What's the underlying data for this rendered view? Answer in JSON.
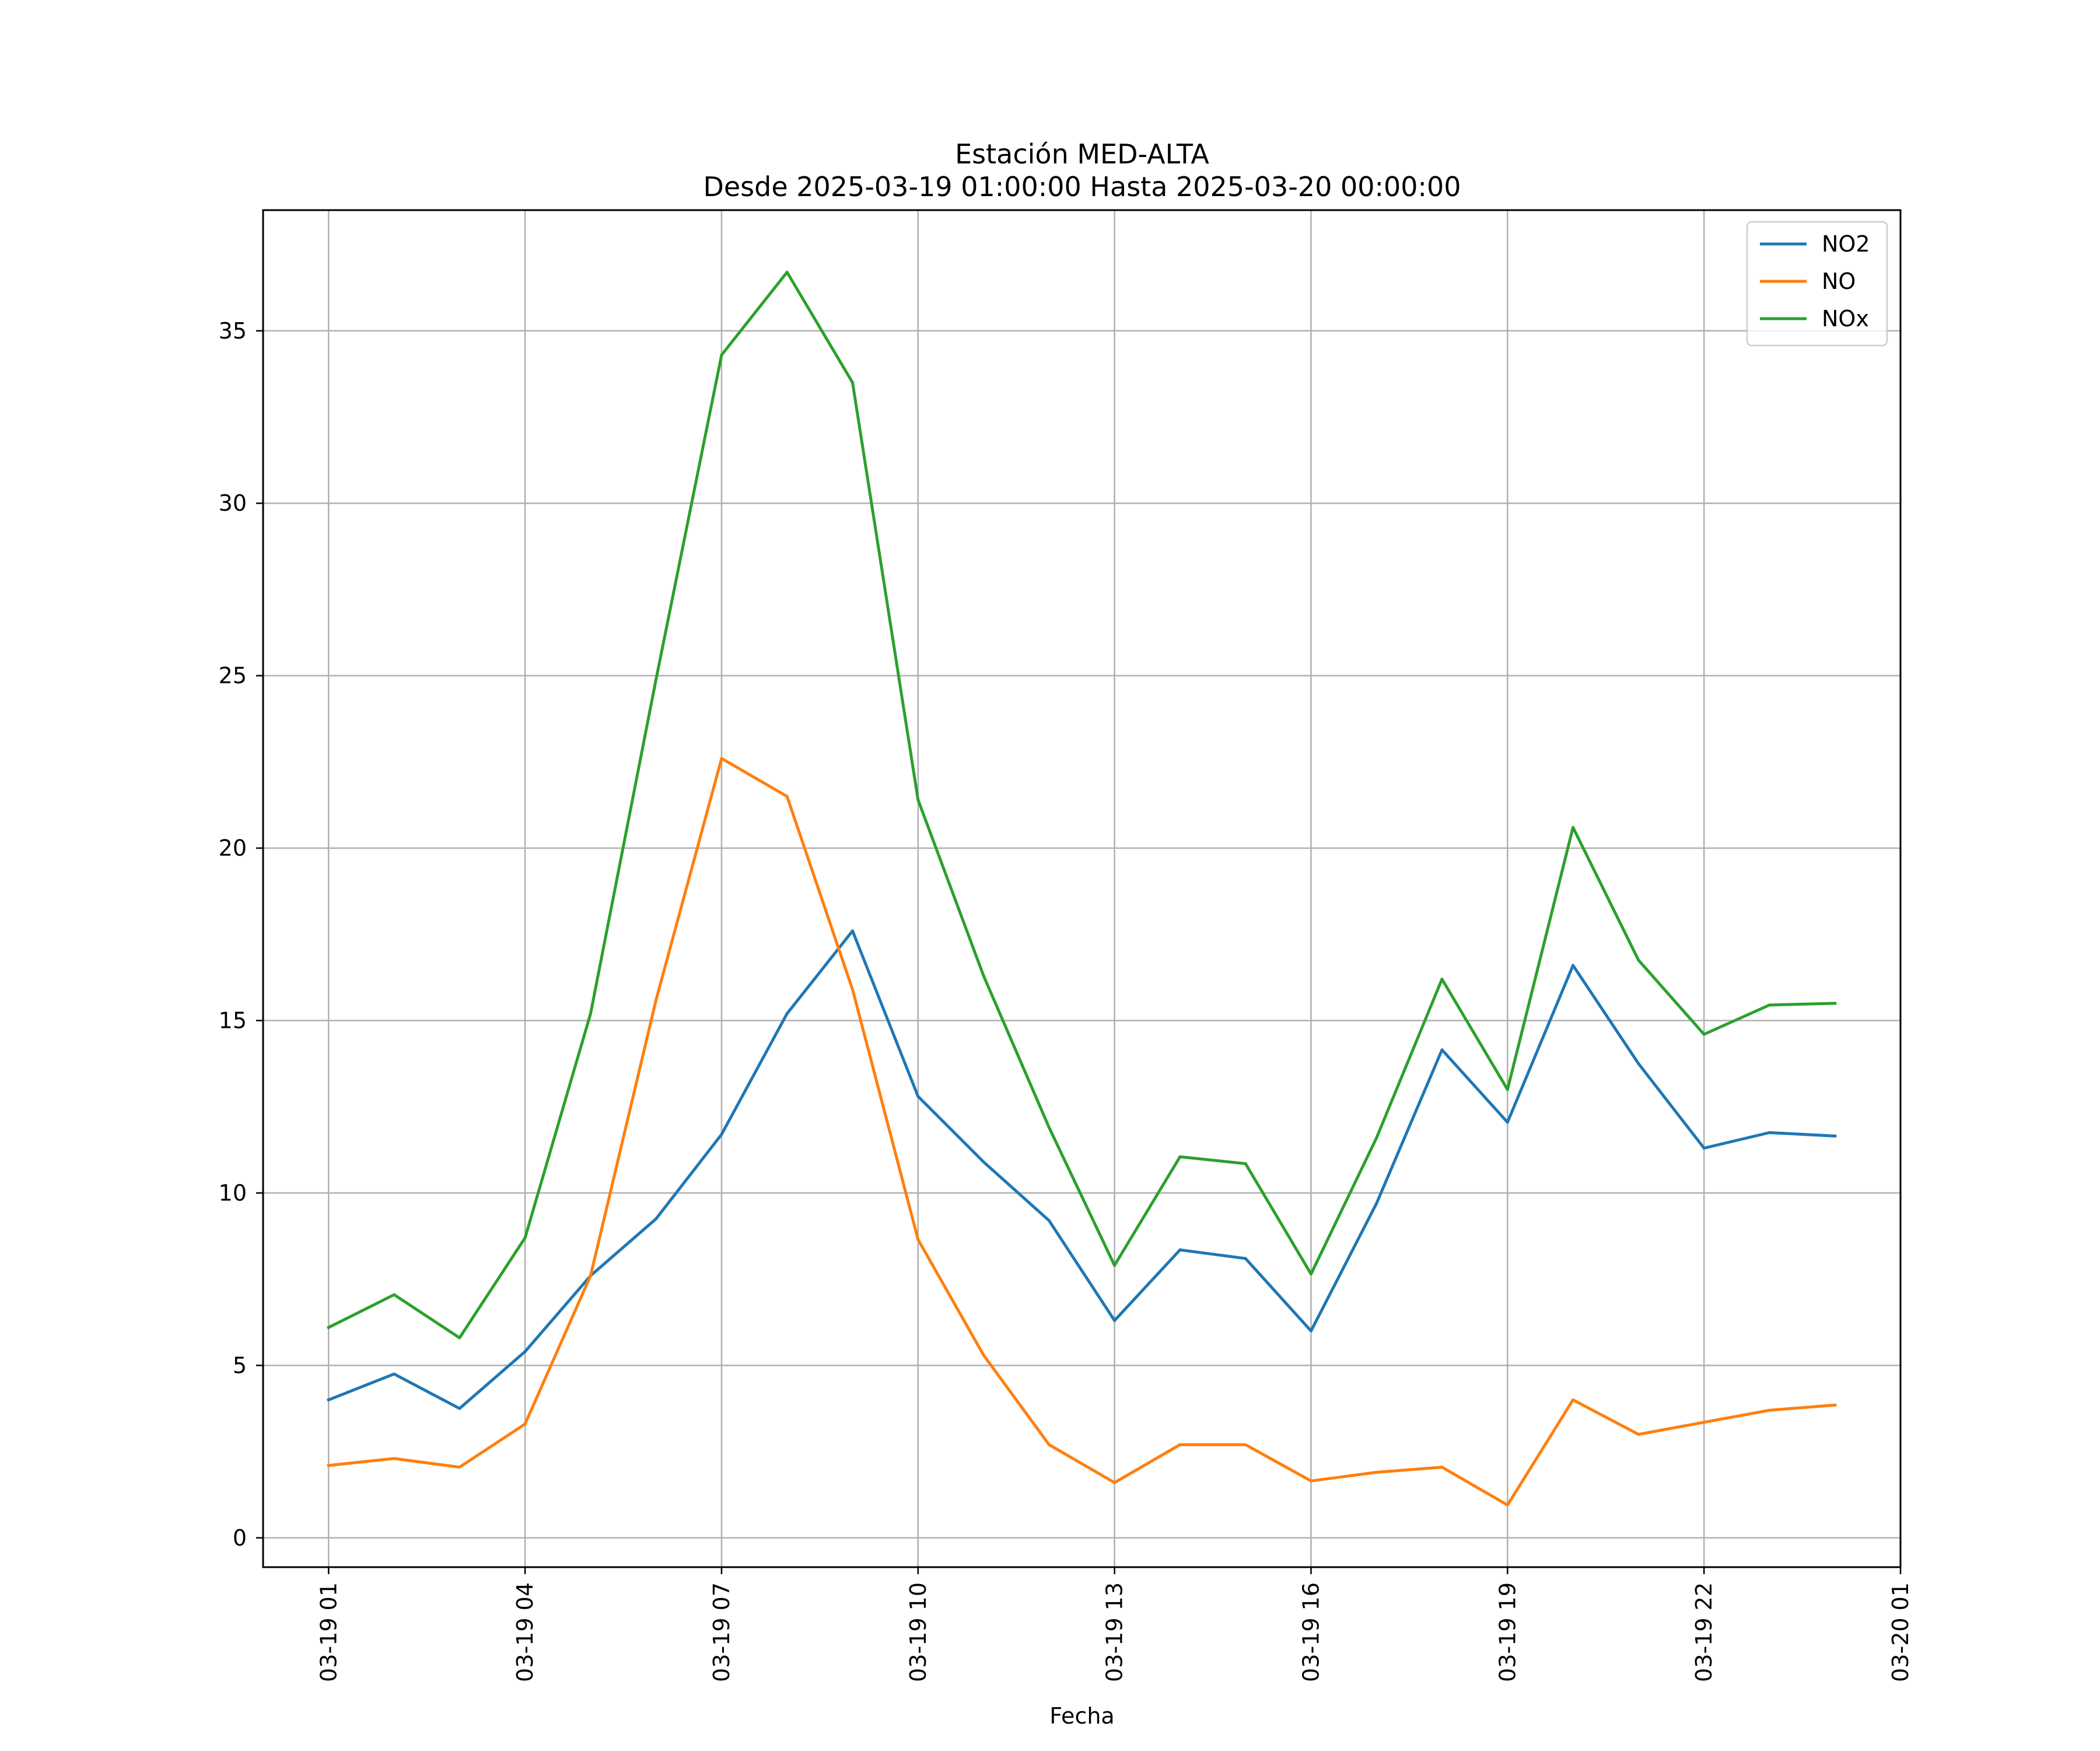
{
  "chart_data": {
    "type": "line",
    "title": "Estación MED-ALTA",
    "subtitle": "Desde 2025-03-19 01:00:00 Hasta 2025-03-20 00:00:00",
    "xlabel": "Fecha",
    "ylabel": "",
    "x": [
      "2025-03-19 01:00",
      "2025-03-19 02:00",
      "2025-03-19 03:00",
      "2025-03-19 04:00",
      "2025-03-19 05:00",
      "2025-03-19 06:00",
      "2025-03-19 07:00",
      "2025-03-19 08:00",
      "2025-03-19 09:00",
      "2025-03-19 10:00",
      "2025-03-19 11:00",
      "2025-03-19 12:00",
      "2025-03-19 13:00",
      "2025-03-19 14:00",
      "2025-03-19 15:00",
      "2025-03-19 16:00",
      "2025-03-19 17:00",
      "2025-03-19 18:00",
      "2025-03-19 19:00",
      "2025-03-19 20:00",
      "2025-03-19 21:00",
      "2025-03-19 22:00",
      "2025-03-19 23:00",
      "2025-03-20 00:00"
    ],
    "xlim": [
      "2025-03-19 00:00",
      "2025-03-20 01:00"
    ],
    "xticks": [
      {
        "at": "2025-03-19 01:00",
        "label": "03-19 01"
      },
      {
        "at": "2025-03-19 04:00",
        "label": "03-19 04"
      },
      {
        "at": "2025-03-19 07:00",
        "label": "03-19 07"
      },
      {
        "at": "2025-03-19 10:00",
        "label": "03-19 10"
      },
      {
        "at": "2025-03-19 13:00",
        "label": "03-19 13"
      },
      {
        "at": "2025-03-19 16:00",
        "label": "03-19 16"
      },
      {
        "at": "2025-03-19 19:00",
        "label": "03-19 19"
      },
      {
        "at": "2025-03-19 22:00",
        "label": "03-19 22"
      },
      {
        "at": "2025-03-20 01:00",
        "label": "03-20 01"
      }
    ],
    "yticks": [
      0,
      5,
      10,
      15,
      20,
      25,
      30,
      35
    ],
    "ylim": [
      -0.85,
      38.5
    ],
    "grid": true,
    "legend_position": "top-right",
    "series": [
      {
        "name": "NO2",
        "color": "#1f77b4",
        "values": [
          4.0,
          4.75,
          3.75,
          5.4,
          7.6,
          9.25,
          11.7,
          15.2,
          17.6,
          12.8,
          10.9,
          9.2,
          6.3,
          8.35,
          8.1,
          6.0,
          9.7,
          14.15,
          12.05,
          16.6,
          13.75,
          11.3,
          11.75,
          11.65
        ]
      },
      {
        "name": "NO",
        "color": "#ff7f0e",
        "values": [
          2.1,
          2.3,
          2.05,
          3.3,
          7.6,
          15.6,
          22.6,
          21.5,
          15.9,
          8.65,
          5.3,
          2.7,
          1.6,
          2.7,
          2.7,
          1.65,
          1.9,
          2.05,
          0.95,
          4.0,
          3.0,
          3.35,
          3.7,
          3.85
        ]
      },
      {
        "name": "NOx",
        "color": "#2ca02c",
        "values": [
          6.1,
          7.05,
          5.8,
          8.7,
          15.2,
          24.9,
          34.3,
          36.7,
          33.5,
          21.4,
          16.3,
          11.9,
          7.9,
          11.05,
          10.85,
          7.65,
          11.6,
          16.2,
          13.0,
          20.6,
          16.75,
          14.6,
          15.45,
          15.5
        ]
      }
    ]
  }
}
